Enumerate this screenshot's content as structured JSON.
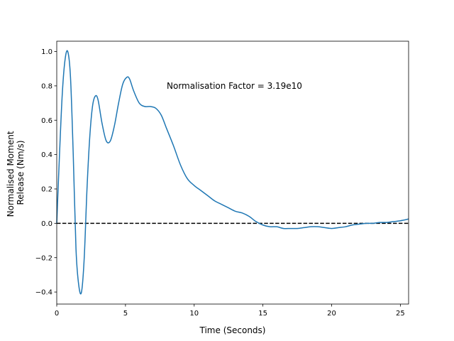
{
  "chart_data": {
    "type": "line",
    "title": "",
    "xlabel": "Time (Seconds)",
    "ylabel_lines": [
      "Normalised Moment",
      "Release (Nm/s)"
    ],
    "xlim": [
      0,
      25.6
    ],
    "ylim": [
      -0.47,
      1.06
    ],
    "xticks": [
      0,
      5,
      10,
      15,
      20,
      25
    ],
    "yticks": [
      -0.4,
      -0.2,
      0.0,
      0.2,
      0.4,
      0.6,
      0.8,
      1.0
    ],
    "ytick_labels": [
      "−0.4",
      "−0.2",
      "0.0",
      "0.2",
      "0.4",
      "0.6",
      "0.8",
      "1.0"
    ],
    "grid": false,
    "annotation": {
      "text": "Normalisation Factor = 3.19e10",
      "x": 8.0,
      "y": 0.8
    },
    "reference_line": {
      "y": 0.0,
      "style": "dashed",
      "color": "#000000"
    },
    "series": [
      {
        "color": "#1f77b4",
        "x": [
          0,
          0.2,
          0.4,
          0.6,
          0.8,
          1.0,
          1.2,
          1.4,
          1.6,
          1.8,
          2.0,
          2.2,
          2.4,
          2.6,
          2.8,
          3.0,
          3.3,
          3.6,
          3.9,
          4.2,
          4.5,
          4.8,
          5.1,
          5.3,
          5.6,
          6.0,
          6.4,
          6.8,
          7.2,
          7.6,
          8.0,
          8.5,
          9.0,
          9.5,
          10.0,
          10.5,
          11.0,
          11.5,
          12.0,
          12.5,
          13.0,
          13.5,
          14.0,
          14.5,
          15.0,
          15.5,
          16.0,
          16.5,
          17.0,
          17.5,
          18.0,
          18.5,
          19.0,
          19.5,
          20.0,
          20.5,
          21.0,
          21.5,
          22.0,
          22.5,
          23.0,
          23.5,
          24.0,
          24.5,
          25.0,
          25.6
        ],
        "y": [
          0.0,
          0.4,
          0.75,
          0.95,
          1.0,
          0.85,
          0.4,
          -0.15,
          -0.36,
          -0.4,
          -0.2,
          0.2,
          0.5,
          0.68,
          0.74,
          0.72,
          0.58,
          0.48,
          0.48,
          0.57,
          0.7,
          0.81,
          0.85,
          0.84,
          0.77,
          0.7,
          0.68,
          0.68,
          0.67,
          0.63,
          0.55,
          0.45,
          0.34,
          0.26,
          0.22,
          0.19,
          0.16,
          0.13,
          0.11,
          0.09,
          0.07,
          0.06,
          0.04,
          0.01,
          -0.01,
          -0.02,
          -0.02,
          -0.03,
          -0.03,
          -0.03,
          -0.025,
          -0.02,
          -0.02,
          -0.025,
          -0.03,
          -0.025,
          -0.02,
          -0.01,
          -0.005,
          0.0,
          0.0,
          0.005,
          0.005,
          0.01,
          0.015,
          0.025
        ]
      }
    ]
  }
}
